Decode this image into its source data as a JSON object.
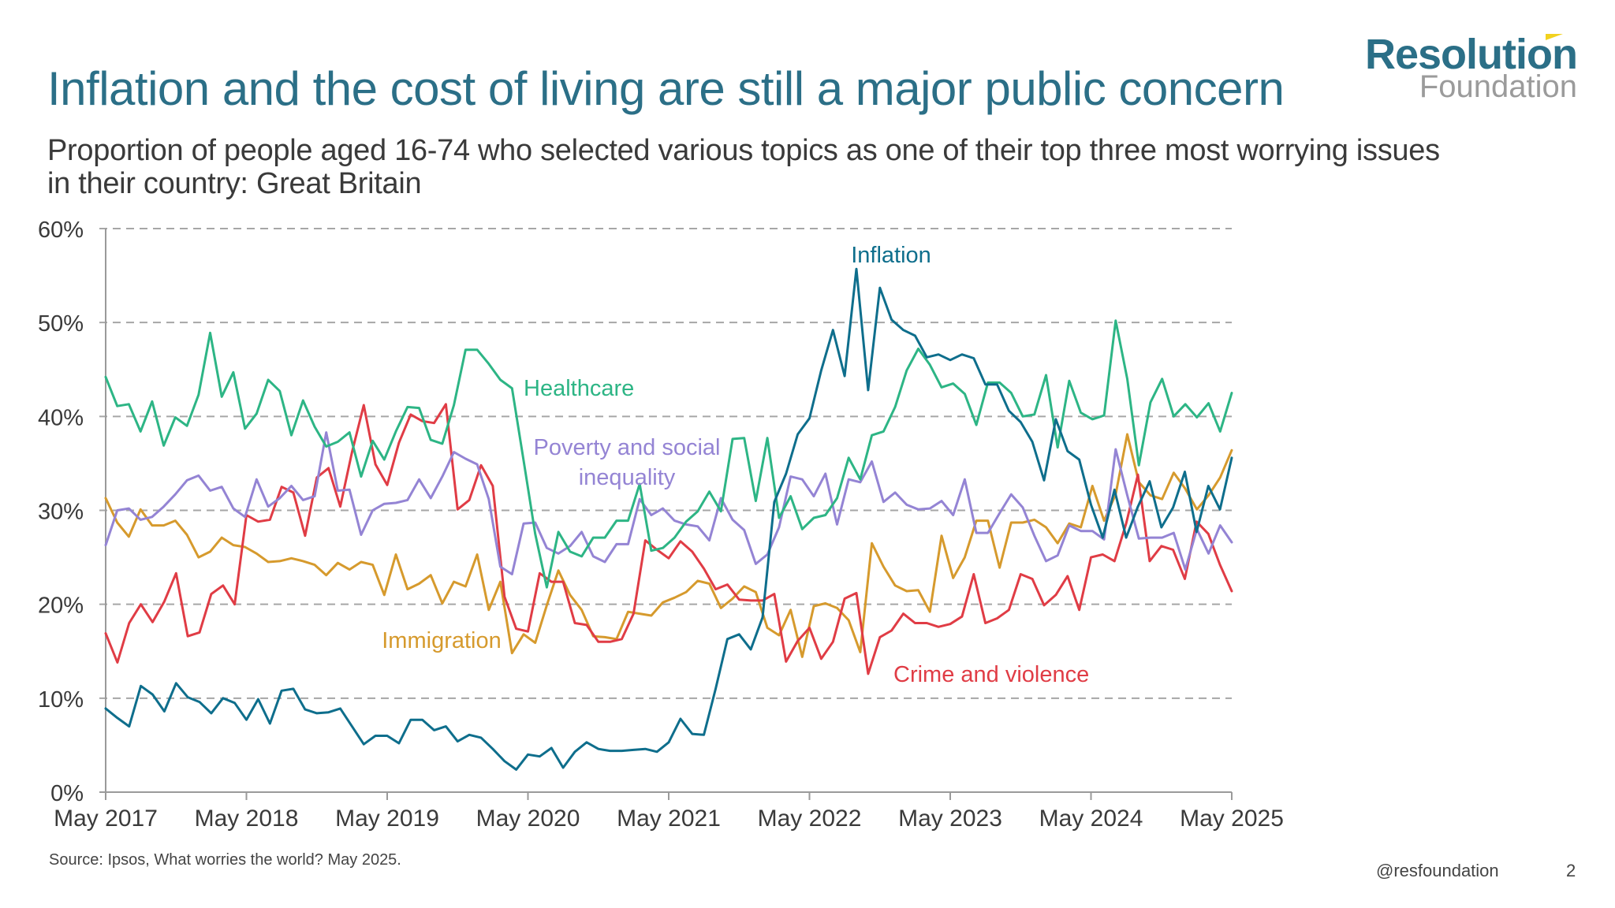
{
  "header": {
    "title": "Inflation and the cost of living are still a major public concern",
    "subtitle": "Proportion of people aged 16-74 who selected various topics as one of their top three most worrying issues in their country: Great Britain"
  },
  "logo": {
    "line1": "Resolution",
    "line2": "Foundation",
    "accent": "#f2d21e",
    "brand": "#2b6f87"
  },
  "footer": {
    "source": "Source: Ipsos, What worries the world? May 2025.",
    "handle": "@resfoundation",
    "page": "2"
  },
  "chart_data": {
    "type": "line",
    "title": "Inflation and the cost of living are still a major public concern",
    "xlabel": "",
    "ylabel": "",
    "x_range": [
      "May 2017",
      "May 2025"
    ],
    "x_ticks": [
      "May 2017",
      "May 2018",
      "May 2019",
      "May 2020",
      "May 2021",
      "May 2022",
      "May 2023",
      "May 2024",
      "May 2025"
    ],
    "y_ticks": [
      "0%",
      "10%",
      "20%",
      "30%",
      "40%",
      "50%",
      "60%"
    ],
    "ylim": [
      0,
      60
    ],
    "grid": true,
    "grid_style": "dashed horizontal",
    "legend": "inline labels",
    "frequency": "monthly (approx.)",
    "series": [
      {
        "name": "Inflation",
        "color": "#0e6e8c",
        "label_anchor": {
          "month_index": 67,
          "value": 57.3
        },
        "values": [
          8.9,
          7.9,
          7.0,
          11.3,
          10.4,
          8.6,
          11.6,
          10.1,
          9.6,
          8.4,
          10.0,
          9.5,
          7.7,
          9.9,
          7.3,
          10.8,
          11.0,
          8.8,
          8.4,
          8.5,
          8.9,
          7.0,
          5.1,
          6.0,
          6.0,
          5.2,
          7.7,
          7.7,
          6.6,
          7.0,
          5.4,
          6.1,
          5.8,
          4.6,
          3.3,
          2.4,
          4.0,
          3.8,
          4.7,
          2.6,
          4.3,
          5.3,
          4.6,
          4.4,
          4.4,
          4.5,
          4.6,
          4.3,
          5.3,
          7.8,
          6.2,
          6.1,
          11.0,
          16.3,
          16.8,
          15.2,
          18.6,
          30.9,
          33.9,
          38.1,
          39.8,
          44.9,
          49.2,
          44.3,
          55.7,
          42.8,
          53.7,
          50.3,
          49.2,
          48.6,
          46.3,
          46.6,
          46.0,
          46.6,
          46.2,
          43.4,
          43.4,
          40.6,
          39.4,
          37.3,
          33.2,
          39.7,
          36.3,
          35.4,
          30.6,
          27.1,
          32.2,
          27.1,
          30.4,
          33.1,
          28.2,
          30.3,
          34.1,
          27.7,
          32.6,
          30.1,
          35.6
        ]
      },
      {
        "name": "Healthcare",
        "color": "#2db585",
        "label_anchor": {
          "month_index": 31,
          "value": 42.5
        },
        "values": [
          44.2,
          41.1,
          41.3,
          38.4,
          41.6,
          36.9,
          39.9,
          39.0,
          42.3,
          48.9,
          42.1,
          44.7,
          38.7,
          40.3,
          43.9,
          42.7,
          38.0,
          41.7,
          38.9,
          36.8,
          37.3,
          38.3,
          33.6,
          37.4,
          35.4,
          38.4,
          41.0,
          40.9,
          37.5,
          37.1,
          41.2,
          47.1,
          47.1,
          45.6,
          43.9,
          43.0,
          35.3,
          27.5,
          21.8,
          27.7,
          25.6,
          25.1,
          27.1,
          27.1,
          28.9,
          28.9,
          32.8,
          25.7,
          26.0,
          27.1,
          28.8,
          29.9,
          32.0,
          29.9,
          37.6,
          37.7,
          31.0,
          37.7,
          29.2,
          31.5,
          28.0,
          29.2,
          29.5,
          31.3,
          35.6,
          33.3,
          38.0,
          38.4,
          41.0,
          44.9,
          47.2,
          45.5,
          43.1,
          43.5,
          42.4,
          39.1,
          43.6,
          43.6,
          42.5,
          40.0,
          40.2,
          44.4,
          36.7,
          43.8,
          40.4,
          39.7,
          40.1,
          50.2,
          44.0,
          34.8,
          41.5,
          44.0,
          40.0,
          41.3,
          39.9,
          41.4,
          38.4,
          42.5
        ]
      },
      {
        "name": "Poverty and social inequality",
        "color": "#9484d4",
        "label_anchor": {
          "month_index": 42,
          "value": 37.0
        },
        "values": [
          26.3,
          30.0,
          30.2,
          29.0,
          29.3,
          30.4,
          31.7,
          33.2,
          33.7,
          32.1,
          32.5,
          30.2,
          29.3,
          33.3,
          30.4,
          31.3,
          32.6,
          31.1,
          31.5,
          38.3,
          32.1,
          32.2,
          27.4,
          30.0,
          30.7,
          30.8,
          31.1,
          33.3,
          31.3,
          33.6,
          36.2,
          35.5,
          34.9,
          31.2,
          24.0,
          23.2,
          28.6,
          28.7,
          26.0,
          25.4,
          26.2,
          27.7,
          25.1,
          24.5,
          26.4,
          26.4,
          31.2,
          29.5,
          30.2,
          28.9,
          28.5,
          28.3,
          26.8,
          31.3,
          29.0,
          27.9,
          24.3,
          25.3,
          28.2,
          33.6,
          33.3,
          31.5,
          33.9,
          28.5,
          33.3,
          33.0,
          35.2,
          30.9,
          31.9,
          30.6,
          30.1,
          30.2,
          31.0,
          29.5,
          33.3,
          27.6,
          27.6,
          29.7,
          31.7,
          30.3,
          27.3,
          24.6,
          25.2,
          28.4,
          27.8,
          27.8,
          26.9,
          36.5,
          31.6,
          27.0,
          27.1,
          27.1,
          27.6,
          23.7,
          28.0,
          25.4,
          28.4,
          26.6
        ]
      },
      {
        "name": "Immigration",
        "color": "#d69a2d",
        "label_anchor": {
          "month_index": 24,
          "value": 16.0
        },
        "values": [
          31.3,
          28.7,
          27.2,
          30.1,
          28.4,
          28.4,
          28.9,
          27.4,
          25.0,
          25.6,
          27.1,
          26.3,
          26.1,
          25.4,
          24.5,
          24.6,
          24.9,
          24.6,
          24.2,
          23.1,
          24.4,
          23.7,
          24.5,
          24.2,
          21.0,
          25.3,
          21.6,
          22.2,
          23.1,
          20.1,
          22.4,
          21.9,
          25.3,
          19.4,
          22.4,
          14.8,
          16.8,
          15.9,
          19.9,
          23.6,
          21.0,
          19.4,
          16.6,
          16.5,
          16.3,
          19.2,
          19.0,
          18.8,
          20.2,
          20.7,
          21.3,
          22.5,
          22.2,
          19.6,
          20.6,
          21.9,
          21.3,
          17.5,
          16.7,
          19.4,
          14.4,
          19.8,
          20.1,
          19.6,
          18.3,
          14.9,
          26.5,
          24.0,
          22.0,
          21.4,
          21.5,
          19.2,
          27.3,
          22.8,
          25.0,
          28.9,
          28.9,
          23.9,
          28.7,
          28.7,
          29.0,
          28.2,
          26.5,
          28.6,
          28.2,
          32.6,
          28.9,
          31.7,
          38.1,
          33.0,
          31.6,
          31.2,
          34.0,
          32.3,
          30.1,
          31.6,
          33.5,
          36.4
        ]
      },
      {
        "name": "Crime and violence",
        "color": "#e03c45",
        "label_anchor": {
          "month_index": 67,
          "value": 12.6
        },
        "values": [
          16.9,
          13.8,
          18.0,
          20.0,
          18.1,
          20.3,
          23.3,
          16.6,
          17.0,
          21.1,
          22.0,
          20.0,
          29.5,
          28.8,
          29.0,
          32.5,
          31.9,
          27.3,
          33.5,
          34.5,
          30.4,
          36.2,
          41.2,
          34.9,
          32.7,
          37.2,
          40.2,
          39.5,
          39.3,
          41.3,
          30.1,
          31.1,
          34.8,
          32.6,
          20.8,
          17.4,
          17.1,
          23.3,
          22.4,
          22.4,
          18.0,
          17.8,
          16.0,
          16.0,
          16.3,
          19.0,
          26.8,
          25.8,
          24.9,
          26.7,
          25.6,
          23.8,
          21.6,
          22.1,
          20.5,
          20.4,
          20.4,
          21.1,
          13.9,
          16.1,
          17.5,
          14.2,
          16.0,
          20.6,
          21.2,
          12.6,
          16.5,
          17.2,
          19.0,
          18.0,
          18.0,
          17.6,
          17.9,
          18.7,
          23.2,
          18.0,
          18.5,
          19.4,
          23.2,
          22.7,
          19.9,
          21.0,
          23.0,
          19.4,
          25.0,
          25.3,
          24.6,
          28.6,
          33.8,
          24.6,
          26.2,
          25.8,
          22.7,
          28.8,
          27.5,
          24.2,
          21.4
        ]
      }
    ]
  }
}
